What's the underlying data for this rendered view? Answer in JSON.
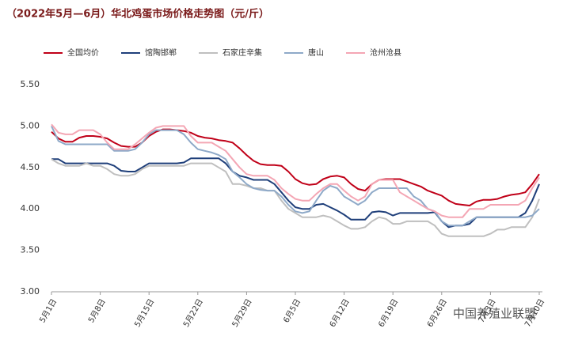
{
  "chart_data": {
    "type": "line",
    "title": "（2022年5月—6月）华北鸡蛋市场价格走势图（元/斤）",
    "watermark": "中国养殖业联盟",
    "categories": [
      "5月1日",
      null,
      null,
      null,
      null,
      null,
      null,
      "5月8日",
      null,
      null,
      null,
      null,
      null,
      null,
      "5月15日",
      null,
      null,
      null,
      null,
      null,
      null,
      "5月22日",
      null,
      null,
      null,
      null,
      null,
      null,
      "5月29日",
      null,
      null,
      null,
      null,
      null,
      null,
      "6月5日",
      null,
      null,
      null,
      null,
      null,
      null,
      "6月12日",
      null,
      null,
      null,
      null,
      null,
      null,
      "6月19日",
      null,
      null,
      null,
      null,
      null,
      null,
      "6月26日",
      null,
      null,
      null,
      null,
      null,
      null,
      "7月3日",
      null,
      null,
      null,
      null,
      null,
      null,
      "7月10日"
    ],
    "series": [
      {
        "name": "全国均价",
        "color": "#c00018",
        "values": [
          4.93,
          4.85,
          4.81,
          4.81,
          4.86,
          4.88,
          4.88,
          4.87,
          4.85,
          4.8,
          4.76,
          4.75,
          4.75,
          4.8,
          4.88,
          4.93,
          4.96,
          4.96,
          4.95,
          4.94,
          4.92,
          4.88,
          4.86,
          4.85,
          4.83,
          4.82,
          4.8,
          4.73,
          4.65,
          4.58,
          4.54,
          4.53,
          4.53,
          4.52,
          4.45,
          4.36,
          4.31,
          4.29,
          4.3,
          4.36,
          4.39,
          4.4,
          4.38,
          4.3,
          4.24,
          4.22,
          4.3,
          4.35,
          4.36,
          4.36,
          4.36,
          4.33,
          4.3,
          4.27,
          4.22,
          4.19,
          4.16,
          4.1,
          4.06,
          4.05,
          4.04,
          4.09,
          4.11,
          4.11,
          4.12,
          4.15,
          4.17,
          4.18,
          4.2,
          4.3,
          4.42
        ]
      },
      {
        "name": "馆陶邯郸",
        "color": "#1f3f7a",
        "values": [
          4.6,
          4.6,
          4.55,
          4.55,
          4.55,
          4.55,
          4.55,
          4.55,
          4.55,
          4.52,
          4.46,
          4.45,
          4.45,
          4.5,
          4.55,
          4.55,
          4.55,
          4.55,
          4.55,
          4.56,
          4.61,
          4.61,
          4.61,
          4.61,
          4.61,
          4.55,
          4.45,
          4.4,
          4.38,
          4.35,
          4.35,
          4.35,
          4.3,
          4.2,
          4.1,
          4.02,
          4.0,
          4.0,
          4.05,
          4.06,
          4.02,
          3.98,
          3.93,
          3.87,
          3.87,
          3.87,
          3.96,
          3.97,
          3.96,
          3.92,
          3.95,
          3.95,
          3.95,
          3.95,
          3.95,
          3.96,
          3.85,
          3.78,
          3.8,
          3.8,
          3.82,
          3.9,
          3.9,
          3.9,
          3.9,
          3.9,
          3.9,
          3.9,
          3.95,
          4.1,
          4.3
        ]
      },
      {
        "name": "石家庄辛集",
        "color": "#bfbfbf",
        "values": [
          4.6,
          4.55,
          4.52,
          4.52,
          4.52,
          4.55,
          4.52,
          4.52,
          4.48,
          4.42,
          4.4,
          4.4,
          4.42,
          4.48,
          4.52,
          4.52,
          4.52,
          4.52,
          4.52,
          4.52,
          4.55,
          4.55,
          4.55,
          4.55,
          4.5,
          4.45,
          4.3,
          4.3,
          4.28,
          4.25,
          4.25,
          4.22,
          4.22,
          4.1,
          4.0,
          3.95,
          3.9,
          3.9,
          3.9,
          3.92,
          3.9,
          3.85,
          3.8,
          3.76,
          3.76,
          3.78,
          3.85,
          3.9,
          3.88,
          3.82,
          3.82,
          3.85,
          3.85,
          3.85,
          3.85,
          3.8,
          3.7,
          3.67,
          3.67,
          3.67,
          3.67,
          3.67,
          3.67,
          3.7,
          3.75,
          3.75,
          3.78,
          3.78,
          3.78,
          3.9,
          4.12
        ]
      },
      {
        "name": "唐山",
        "color": "#8ea9c8",
        "values": [
          5.0,
          4.82,
          4.78,
          4.78,
          4.78,
          4.78,
          4.78,
          4.78,
          4.78,
          4.7,
          4.7,
          4.7,
          4.72,
          4.8,
          4.9,
          4.95,
          4.95,
          4.95,
          4.95,
          4.9,
          4.8,
          4.72,
          4.7,
          4.68,
          4.65,
          4.6,
          4.45,
          4.38,
          4.3,
          4.25,
          4.23,
          4.22,
          4.22,
          4.15,
          4.05,
          3.97,
          3.95,
          3.97,
          4.1,
          4.22,
          4.28,
          4.25,
          4.15,
          4.1,
          4.05,
          4.1,
          4.2,
          4.25,
          4.25,
          4.25,
          4.25,
          4.25,
          4.15,
          4.1,
          4.0,
          3.97,
          3.85,
          3.8,
          3.8,
          3.8,
          3.85,
          3.9,
          3.9,
          3.9,
          3.9,
          3.9,
          3.9,
          3.9,
          3.9,
          3.92,
          4.0
        ]
      },
      {
        "name": "沧州沧县",
        "color": "#f4a6b4",
        "values": [
          5.02,
          4.92,
          4.9,
          4.9,
          4.95,
          4.95,
          4.95,
          4.9,
          4.8,
          4.72,
          4.72,
          4.72,
          4.78,
          4.85,
          4.92,
          4.98,
          5.0,
          5.0,
          5.0,
          5.0,
          4.88,
          4.8,
          4.8,
          4.8,
          4.75,
          4.7,
          4.6,
          4.5,
          4.42,
          4.4,
          4.4,
          4.4,
          4.35,
          4.25,
          4.18,
          4.12,
          4.1,
          4.1,
          4.18,
          4.25,
          4.3,
          4.3,
          4.22,
          4.15,
          4.1,
          4.15,
          4.3,
          4.35,
          4.35,
          4.35,
          4.2,
          4.15,
          4.1,
          4.05,
          4.0,
          3.97,
          3.92,
          3.9,
          3.9,
          3.9,
          4.0,
          4.0,
          4.0,
          4.05,
          4.05,
          4.05,
          4.05,
          4.05,
          4.1,
          4.25,
          4.38
        ]
      }
    ],
    "ylim": [
      3.0,
      5.5
    ],
    "yticks": [
      {
        "value": 3.0,
        "label": "3.00"
      },
      {
        "value": 3.5,
        "label": "3.50"
      },
      {
        "value": 4.0,
        "label": "4.00"
      },
      {
        "value": 4.5,
        "label": "4.50"
      },
      {
        "value": 5.0,
        "label": "5.00"
      },
      {
        "value": 5.5,
        "label": "5.50"
      }
    ],
    "grid": false,
    "legend": "top"
  }
}
